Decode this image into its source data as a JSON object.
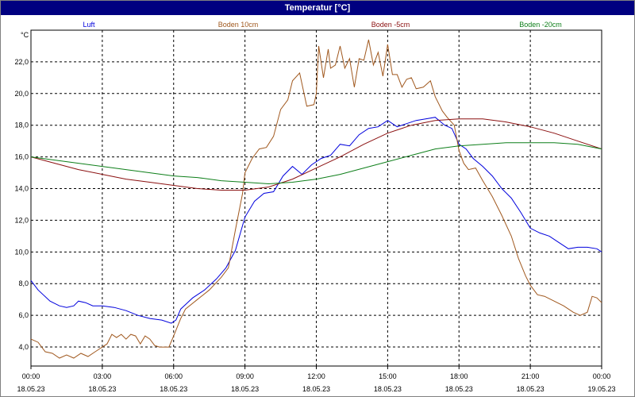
{
  "window": {
    "title": "Temperatur [°C]"
  },
  "chart_data": {
    "type": "line",
    "title": "Temperatur [°C]",
    "ylabel": "°C",
    "xlabel": "",
    "ylim": [
      2.8,
      24.0
    ],
    "xlim": [
      0,
      24
    ],
    "grid": true,
    "legend_placement": "top",
    "y_ticks": [
      "4,0",
      "6,0",
      "8,0",
      "10,0",
      "12,0",
      "14,0",
      "16,0",
      "18,0",
      "20,0",
      "22,0"
    ],
    "y_tick_values": [
      4,
      6,
      8,
      10,
      12,
      14,
      16,
      18,
      20,
      22
    ],
    "x_ticks": [
      {
        "time": "00:00",
        "date": "18.05.23"
      },
      {
        "time": "03:00",
        "date": "18.05.23"
      },
      {
        "time": "06:00",
        "date": "18.05.23"
      },
      {
        "time": "09:00",
        "date": "18.05.23"
      },
      {
        "time": "12:00",
        "date": "18.05.23"
      },
      {
        "time": "15:00",
        "date": "18.05.23"
      },
      {
        "time": "18:00",
        "date": "18.05.23"
      },
      {
        "time": "21:00",
        "date": "18.05.23"
      },
      {
        "time": "00:00",
        "date": "19.05.23"
      }
    ],
    "series": [
      {
        "name": "Luft",
        "color": "#0000dd",
        "points": [
          [
            0,
            8.2
          ],
          [
            0.3,
            7.6
          ],
          [
            0.8,
            6.9
          ],
          [
            1.2,
            6.6
          ],
          [
            1.5,
            6.5
          ],
          [
            1.8,
            6.6
          ],
          [
            2.0,
            6.9
          ],
          [
            2.3,
            6.8
          ],
          [
            2.6,
            6.6
          ],
          [
            3.0,
            6.6
          ],
          [
            3.5,
            6.5
          ],
          [
            4.0,
            6.3
          ],
          [
            4.5,
            6.0
          ],
          [
            5.0,
            5.8
          ],
          [
            5.5,
            5.7
          ],
          [
            5.9,
            5.5
          ],
          [
            6.1,
            5.7
          ],
          [
            6.3,
            6.4
          ],
          [
            6.8,
            7.1
          ],
          [
            7.3,
            7.6
          ],
          [
            7.8,
            8.3
          ],
          [
            8.2,
            9.0
          ],
          [
            8.6,
            10.1
          ],
          [
            9.0,
            12.2
          ],
          [
            9.4,
            13.2
          ],
          [
            9.8,
            13.7
          ],
          [
            10.2,
            13.8
          ],
          [
            10.6,
            14.8
          ],
          [
            11.0,
            15.4
          ],
          [
            11.4,
            14.9
          ],
          [
            11.8,
            15.5
          ],
          [
            12.2,
            15.9
          ],
          [
            12.6,
            16.1
          ],
          [
            13.0,
            16.8
          ],
          [
            13.4,
            16.7
          ],
          [
            13.8,
            17.4
          ],
          [
            14.2,
            17.8
          ],
          [
            14.6,
            17.9
          ],
          [
            15.0,
            18.3
          ],
          [
            15.4,
            17.9
          ],
          [
            15.8,
            18.1
          ],
          [
            16.2,
            18.3
          ],
          [
            16.6,
            18.4
          ],
          [
            17.0,
            18.5
          ],
          [
            17.4,
            18.0
          ],
          [
            17.7,
            17.8
          ],
          [
            18.0,
            16.8
          ],
          [
            18.3,
            16.5
          ],
          [
            18.6,
            15.9
          ],
          [
            19.0,
            15.4
          ],
          [
            19.4,
            14.8
          ],
          [
            19.8,
            14.0
          ],
          [
            20.2,
            13.4
          ],
          [
            20.6,
            12.5
          ],
          [
            21.0,
            11.5
          ],
          [
            21.4,
            11.2
          ],
          [
            21.8,
            11.0
          ],
          [
            22.2,
            10.6
          ],
          [
            22.6,
            10.2
          ],
          [
            23.0,
            10.3
          ],
          [
            23.4,
            10.3
          ],
          [
            23.8,
            10.2
          ],
          [
            24.0,
            10.0
          ]
        ]
      },
      {
        "name": "Boden 10cm",
        "color": "#a0581e",
        "points": [
          [
            0,
            4.5
          ],
          [
            0.3,
            4.3
          ],
          [
            0.6,
            3.7
          ],
          [
            0.9,
            3.6
          ],
          [
            1.2,
            3.3
          ],
          [
            1.5,
            3.5
          ],
          [
            1.8,
            3.3
          ],
          [
            2.1,
            3.6
          ],
          [
            2.4,
            3.4
          ],
          [
            2.7,
            3.7
          ],
          [
            3.0,
            4.0
          ],
          [
            3.2,
            4.2
          ],
          [
            3.4,
            4.8
          ],
          [
            3.6,
            4.6
          ],
          [
            3.8,
            4.8
          ],
          [
            4.0,
            4.5
          ],
          [
            4.2,
            4.8
          ],
          [
            4.4,
            4.7
          ],
          [
            4.6,
            4.2
          ],
          [
            4.8,
            4.7
          ],
          [
            5.0,
            4.5
          ],
          [
            5.2,
            4.1
          ],
          [
            5.4,
            4.0
          ],
          [
            5.8,
            4.0
          ],
          [
            6.0,
            4.7
          ],
          [
            6.3,
            5.8
          ],
          [
            6.5,
            6.4
          ],
          [
            7.0,
            7.0
          ],
          [
            7.5,
            7.6
          ],
          [
            8.0,
            8.4
          ],
          [
            8.3,
            9.0
          ],
          [
            8.6,
            11.4
          ],
          [
            8.9,
            13.7
          ],
          [
            9.0,
            15.0
          ],
          [
            9.3,
            15.9
          ],
          [
            9.6,
            16.5
          ],
          [
            9.9,
            16.6
          ],
          [
            10.2,
            17.3
          ],
          [
            10.5,
            19.0
          ],
          [
            10.8,
            19.6
          ],
          [
            11.0,
            20.8
          ],
          [
            11.3,
            21.3
          ],
          [
            11.6,
            19.2
          ],
          [
            11.9,
            19.3
          ],
          [
            12.0,
            20.0
          ],
          [
            12.1,
            23.0
          ],
          [
            12.3,
            21.0
          ],
          [
            12.5,
            22.8
          ],
          [
            12.6,
            21.6
          ],
          [
            12.8,
            21.8
          ],
          [
            13.0,
            23.0
          ],
          [
            13.2,
            21.6
          ],
          [
            13.4,
            22.2
          ],
          [
            13.6,
            20.4
          ],
          [
            13.8,
            22.2
          ],
          [
            14.0,
            22.1
          ],
          [
            14.2,
            23.4
          ],
          [
            14.4,
            21.8
          ],
          [
            14.6,
            22.6
          ],
          [
            14.8,
            21.1
          ],
          [
            15.0,
            23.1
          ],
          [
            15.2,
            21.2
          ],
          [
            15.4,
            21.2
          ],
          [
            15.6,
            20.4
          ],
          [
            15.8,
            20.9
          ],
          [
            16.0,
            21.0
          ],
          [
            16.2,
            20.3
          ],
          [
            16.5,
            20.4
          ],
          [
            16.8,
            20.8
          ],
          [
            17.0,
            19.8
          ],
          [
            17.3,
            18.9
          ],
          [
            17.5,
            18.5
          ],
          [
            17.8,
            18.0
          ],
          [
            18.0,
            16.4
          ],
          [
            18.2,
            15.6
          ],
          [
            18.4,
            15.2
          ],
          [
            18.7,
            15.3
          ],
          [
            19.0,
            14.5
          ],
          [
            19.4,
            13.5
          ],
          [
            19.8,
            12.3
          ],
          [
            20.2,
            11.0
          ],
          [
            20.5,
            9.6
          ],
          [
            20.8,
            8.5
          ],
          [
            21.0,
            7.9
          ],
          [
            21.3,
            7.3
          ],
          [
            21.6,
            7.2
          ],
          [
            22.0,
            6.9
          ],
          [
            22.4,
            6.6
          ],
          [
            22.8,
            6.2
          ],
          [
            23.1,
            6.0
          ],
          [
            23.4,
            6.2
          ],
          [
            23.6,
            7.2
          ],
          [
            23.8,
            7.1
          ],
          [
            24.0,
            6.8
          ]
        ]
      },
      {
        "name": "Boden -5cm",
        "color": "#8b1010",
        "points": [
          [
            0,
            16.0
          ],
          [
            1,
            15.6
          ],
          [
            2,
            15.2
          ],
          [
            3,
            14.9
          ],
          [
            4,
            14.6
          ],
          [
            5,
            14.4
          ],
          [
            6,
            14.2
          ],
          [
            7,
            14.0
          ],
          [
            8,
            13.9
          ],
          [
            9,
            13.9
          ],
          [
            10,
            14.1
          ],
          [
            11,
            14.6
          ],
          [
            12,
            15.3
          ],
          [
            13,
            16.0
          ],
          [
            14,
            16.8
          ],
          [
            15,
            17.5
          ],
          [
            16,
            18.0
          ],
          [
            17,
            18.3
          ],
          [
            18,
            18.4
          ],
          [
            19,
            18.4
          ],
          [
            20,
            18.2
          ],
          [
            21,
            17.9
          ],
          [
            22,
            17.5
          ],
          [
            23,
            17.0
          ],
          [
            24,
            16.5
          ]
        ]
      },
      {
        "name": "Boden -20cm",
        "color": "#0e7f1a",
        "points": [
          [
            0,
            16.0
          ],
          [
            1,
            15.8
          ],
          [
            2,
            15.6
          ],
          [
            3,
            15.4
          ],
          [
            4,
            15.2
          ],
          [
            5,
            15.0
          ],
          [
            6,
            14.8
          ],
          [
            7,
            14.7
          ],
          [
            8,
            14.5
          ],
          [
            9,
            14.4
          ],
          [
            10,
            14.3
          ],
          [
            11,
            14.4
          ],
          [
            12,
            14.6
          ],
          [
            13,
            14.9
          ],
          [
            14,
            15.3
          ],
          [
            15,
            15.7
          ],
          [
            16,
            16.1
          ],
          [
            17,
            16.5
          ],
          [
            18,
            16.7
          ],
          [
            19,
            16.8
          ],
          [
            20,
            16.9
          ],
          [
            21,
            16.9
          ],
          [
            22,
            16.9
          ],
          [
            23,
            16.8
          ],
          [
            24,
            16.5
          ]
        ]
      }
    ]
  }
}
